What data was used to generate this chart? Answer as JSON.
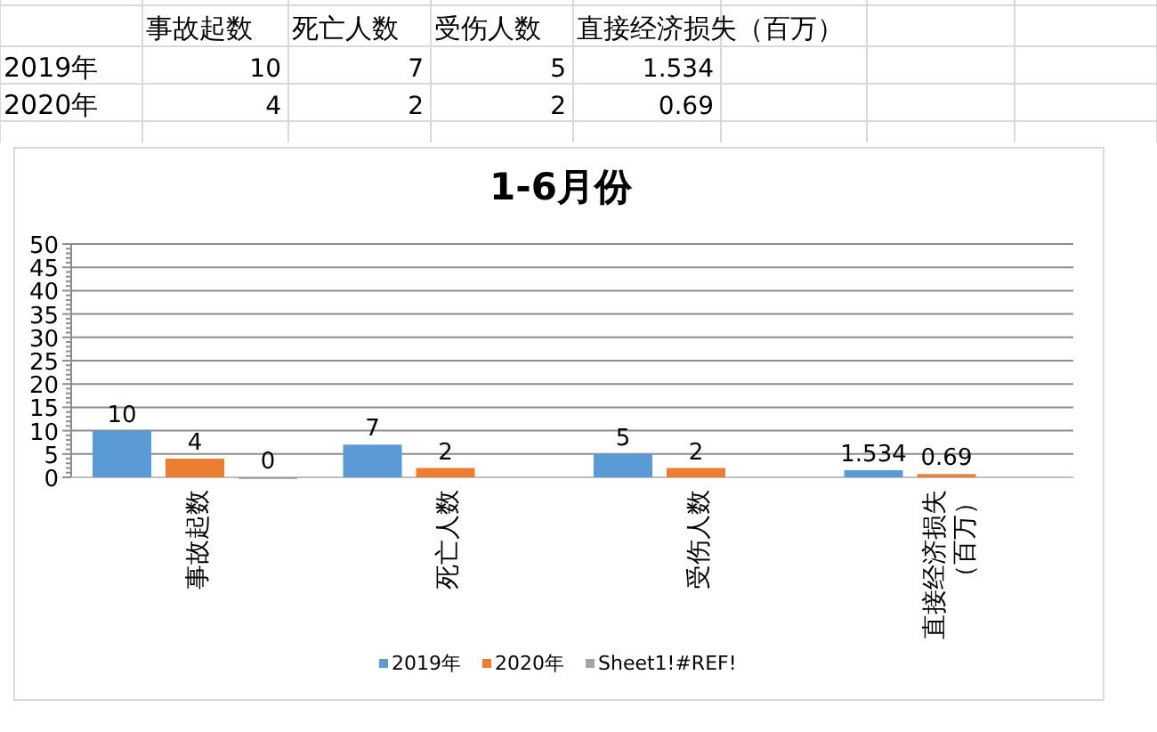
{
  "chart_data": {
    "type": "bar",
    "title": "1-6月份",
    "categories": [
      "事故起数",
      "死亡人数",
      "受伤人数",
      "直接经济损失（百万）"
    ],
    "series": [
      {
        "name": "2019年",
        "color": "#5b9bd5",
        "values": [
          10,
          7,
          5,
          1.534
        ]
      },
      {
        "name": "2020年",
        "color": "#ed7d31",
        "values": [
          4,
          2,
          2,
          0.69
        ]
      },
      {
        "name": "Sheet1!#REF!",
        "color": "#a5a5a5",
        "values": [
          0,
          null,
          null,
          null
        ]
      }
    ],
    "annotations": [
      "10",
      "7",
      "5",
      "1.534",
      "4",
      "2",
      "2",
      "0.69"
    ],
    "ylim": [
      0,
      50
    ],
    "yticks": [
      0,
      5,
      10,
      15,
      20,
      25,
      30,
      35,
      40,
      45,
      50
    ],
    "grid": "y",
    "legend": "bottom",
    "data_labels": true
  }
}
